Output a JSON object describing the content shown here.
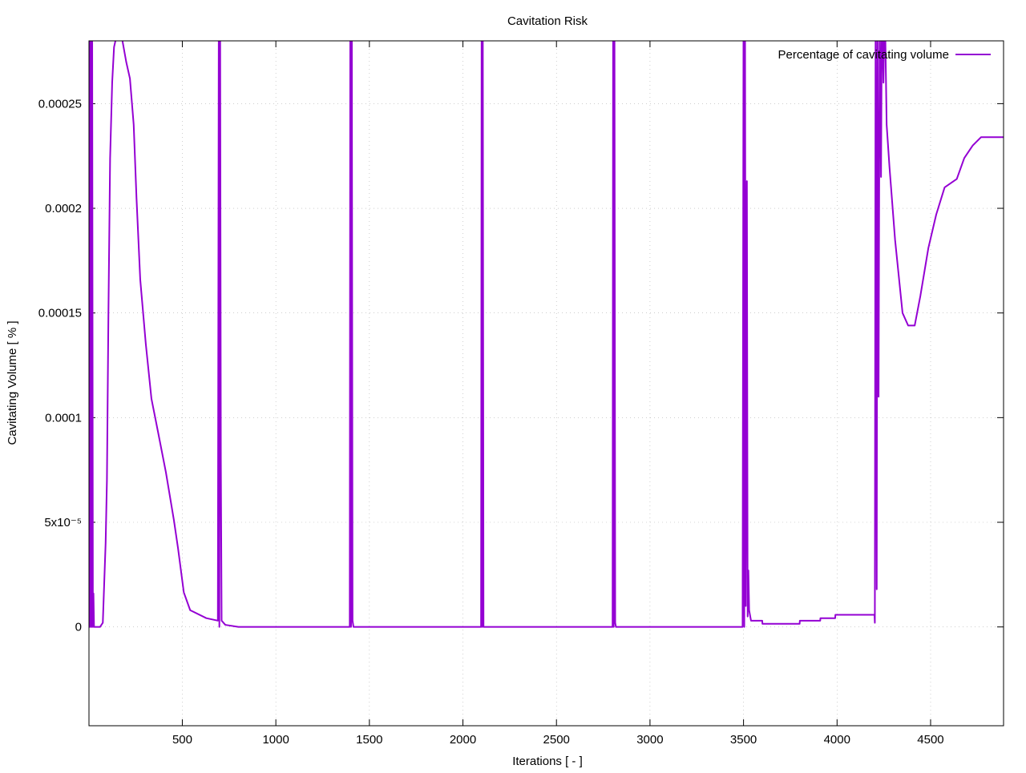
{
  "chart_data": {
    "type": "line",
    "title": "Cavitation Risk",
    "x_label": "Iterations [ - ]",
    "y_label": "Cavitating Volume [ % ]",
    "xlim": [
      1,
      4890
    ],
    "ylim": [
      -4.72e-05,
      0.00028
    ],
    "xticks": [
      500,
      1000,
      1500,
      2000,
      2500,
      3000,
      3500,
      4000,
      4500
    ],
    "yticks": [
      0,
      {
        "value": 5e-05,
        "label": "5x10⁻⁵"
      },
      0.0001,
      0.00015,
      0.0002,
      0.00025
    ],
    "grid": true,
    "legend": "top right",
    "x": [
      1,
      3,
      5,
      8,
      10,
      13,
      16,
      18,
      22,
      25,
      28,
      60,
      75,
      90,
      97,
      105,
      114,
      125,
      135,
      150,
      178,
      200,
      220,
      240,
      255,
      275,
      305,
      335,
      370,
      412,
      455,
      477,
      508,
      542,
      628,
      690,
      695,
      698,
      702,
      706,
      710,
      730,
      800,
      1395,
      1398,
      1402,
      1406,
      1410,
      1415,
      2097,
      2100,
      2103,
      2106,
      2110,
      2800,
      2803,
      2806,
      2810,
      2814,
      2818,
      3495,
      3500,
      3504,
      3508,
      3512,
      3518,
      3522,
      3526,
      3530,
      3540,
      3600,
      3601,
      3800,
      3801,
      3910,
      3911,
      3990,
      3991,
      4200,
      4202,
      4206,
      4212,
      4216,
      4222,
      4228,
      4235,
      4240,
      4248,
      4255,
      4265,
      4280,
      4310,
      4350,
      4380,
      4415,
      4445,
      4488,
      4530,
      4575,
      4640,
      4680,
      4725,
      4770,
      4890
    ],
    "series": [
      {
        "name": "Percentage of cavitating volume",
        "color": "#9400d3",
        "values": [
          0,
          0.0003,
          0,
          0.0003,
          0,
          0.0003,
          0,
          0.0003,
          0,
          1.6e-05,
          0,
          0,
          2e-06,
          4e-05,
          7e-05,
          0.00015,
          0.000224,
          0.00026,
          0.000277,
          0.000283,
          0.000281,
          0.00027,
          0.000262,
          0.00024,
          0.000205,
          0.000166,
          0.000135,
          0.000109,
          9.32e-05,
          7.4e-05,
          5.1e-05,
          3.76e-05,
          1.65e-05,
          8e-06,
          4.2e-06,
          3e-06,
          0.0003,
          0,
          0.0003,
          8e-05,
          3e-06,
          1e-06,
          0,
          0,
          0.0003,
          0,
          0.0003,
          3e-06,
          0,
          0,
          0.0003,
          0,
          0.0003,
          0,
          0,
          0.0003,
          0,
          0.0003,
          2e-06,
          0,
          0,
          0.0003,
          0,
          0.0003,
          1e-05,
          0.000213,
          5e-06,
          2.7e-05,
          8e-06,
          3e-06,
          3e-06,
          1.5e-06,
          1.5e-06,
          3e-06,
          3e-06,
          4.2e-06,
          4.2e-06,
          5.8e-06,
          5.8e-06,
          2e-06,
          0.0003,
          1.8e-05,
          0.0003,
          0.00011,
          0.0003,
          0.000215,
          0.0003,
          0.00026,
          0.0003,
          0.00024,
          0.00022,
          0.000185,
          0.00015,
          0.000144,
          0.000144,
          0.000158,
          0.000181,
          0.000197,
          0.00021,
          0.000214,
          0.000224,
          0.00023,
          0.000234,
          0.000234
        ]
      }
    ]
  }
}
